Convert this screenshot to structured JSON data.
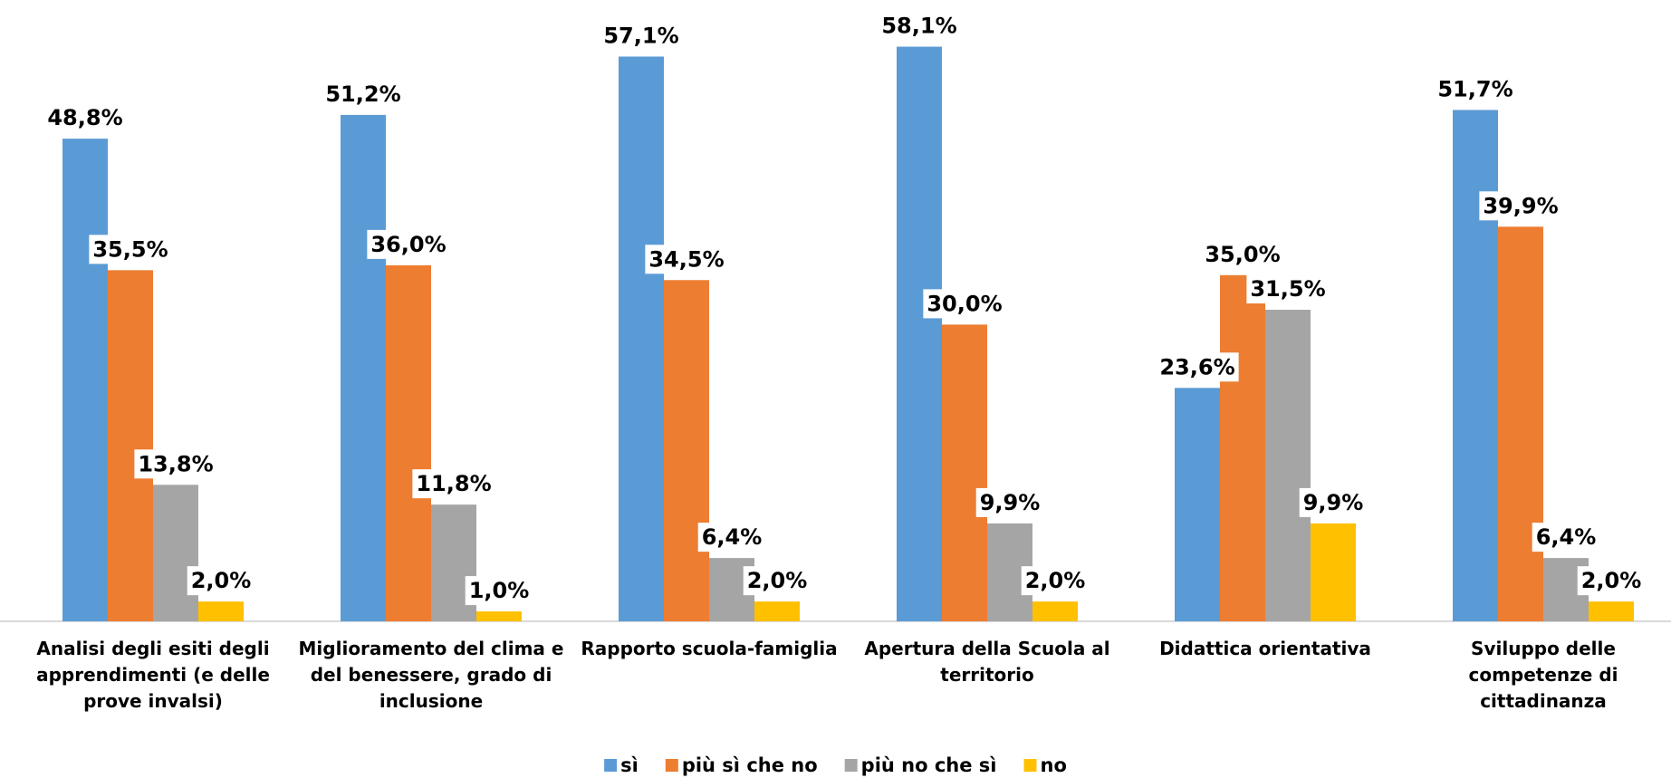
{
  "chart_data": {
    "type": "bar",
    "categories": [
      "Analisi degli esiti degli apprendimenti (e delle prove invalsi)",
      "Miglioramento del clima e del benessere, grado di inclusione",
      "Rapporto scuola-famiglia",
      "Apertura della Scuola al territorio",
      "Didattica orientativa",
      "Sviluppo delle competenze di cittadinanza"
    ],
    "series": [
      {
        "name": "sì",
        "color": "#5b9bd5",
        "values": [
          48.8,
          51.2,
          57.1,
          58.1,
          23.6,
          51.7
        ],
        "value_labels": [
          "48,8%",
          "51,2%",
          "57,1%",
          "58,1%",
          "23,6%",
          "51,7%"
        ]
      },
      {
        "name": "più sì che no",
        "color": "#ed7d31",
        "values": [
          35.5,
          36.0,
          34.5,
          30.0,
          35.0,
          39.9
        ],
        "value_labels": [
          "35,5%",
          "36,0%",
          "34,5%",
          "30,0%",
          "35,0%",
          "39,9%"
        ]
      },
      {
        "name": "più no che sì",
        "color": "#a5a5a5",
        "values": [
          13.8,
          11.8,
          6.4,
          9.9,
          31.5,
          6.4
        ],
        "value_labels": [
          "13,8%",
          "11,8%",
          "6,4%",
          "9,9%",
          "31,5%",
          "6,4%"
        ]
      },
      {
        "name": "no",
        "color": "#ffc000",
        "values": [
          2.0,
          1.0,
          2.0,
          2.0,
          9.9,
          2.0
        ],
        "value_labels": [
          "2,0%",
          "1,0%",
          "2,0%",
          "2,0%",
          "9,9%",
          "2,0%"
        ]
      }
    ],
    "legend": "bottom"
  }
}
